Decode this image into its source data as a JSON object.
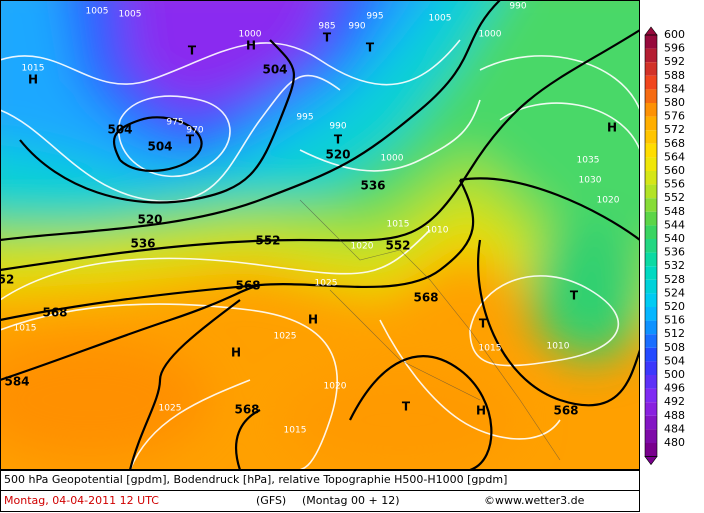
{
  "map": {
    "labels": [
      "1005",
      "1005",
      "1000",
      "H",
      "T",
      "504",
      "985",
      "T",
      "990",
      "995",
      "T",
      "1005",
      "990",
      "1000",
      "1015",
      "H",
      "504",
      "504",
      "T",
      "975",
      "970",
      "995",
      "T",
      "990",
      "520",
      "1000",
      "536",
      "520",
      "536",
      "552",
      "552",
      "1020",
      "1010",
      "1015",
      "H",
      "1035",
      "1030",
      "1020",
      "568",
      "568",
      "1015",
      "H",
      "1025",
      "1025",
      "H",
      "568",
      "T",
      "T",
      "1015",
      "1010",
      "584",
      "1020",
      "T",
      "H",
      "568",
      "568",
      "1025",
      "1015",
      "52"
    ]
  },
  "colorbar": {
    "labels": [
      600,
      596,
      592,
      588,
      584,
      580,
      576,
      572,
      568,
      564,
      560,
      556,
      552,
      548,
      544,
      540,
      536,
      532,
      528,
      524,
      520,
      516,
      512,
      508,
      504,
      500,
      496,
      492,
      488,
      484,
      480
    ]
  },
  "footer": {
    "description": "500 hPa Geopotential [gpdm], Bodendruck [hPa], relative Topographie H500-H1000 [gpdm]",
    "date": "Montag, 04-04-2011  12 UTC",
    "model": "(GFS)",
    "run": "(Montag 00 + 12)",
    "credit": "©www.wetter3.de"
  }
}
